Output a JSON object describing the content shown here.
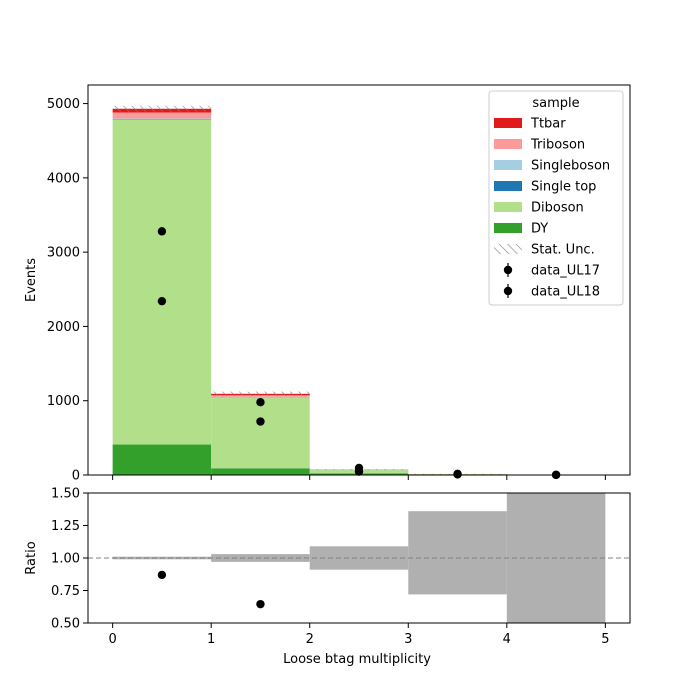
{
  "chart_data": [
    {
      "type": "bar",
      "stacked": true,
      "xlabel": "",
      "ylabel": "Events",
      "ylim": [
        0,
        5250
      ],
      "xlim": [
        -0.25,
        5.25
      ],
      "bin_edges": [
        0,
        1,
        2,
        3,
        4,
        5
      ],
      "x_ticks": [
        "0",
        "1",
        "2",
        "3",
        "4",
        "5"
      ],
      "y_ticks": [
        "0",
        "1000",
        "2000",
        "3000",
        "4000",
        "5000"
      ],
      "legend_title": "sample",
      "legend_position": "top-right",
      "series": [
        {
          "name": "DY",
          "color": "#33a02c",
          "values": [
            410,
            90,
            20,
            3,
            0
          ]
        },
        {
          "name": "Diboson",
          "color": "#b2df8a",
          "values": [
            4370,
            955,
            45,
            8,
            1
          ]
        },
        {
          "name": "Single top",
          "color": "#1f78b4",
          "values": [
            5,
            3,
            1,
            0,
            0
          ]
        },
        {
          "name": "Singleboson",
          "color": "#a6cee3",
          "values": [
            15,
            5,
            1,
            0,
            0
          ]
        },
        {
          "name": "Triboson",
          "color": "#fb9a99",
          "values": [
            80,
            20,
            2,
            0,
            0
          ]
        },
        {
          "name": "Ttbar",
          "color": "#e31a1c",
          "values": [
            50,
            20,
            3,
            1,
            0
          ]
        }
      ],
      "stat_unc": {
        "name": "Stat. Unc.",
        "values": [
          40,
          30,
          6,
          4,
          2
        ]
      },
      "data_series": [
        {
          "name": "data_UL17",
          "x": [
            0.5,
            1.5,
            2.5,
            3.5,
            4.5
          ],
          "y": [
            3280,
            980,
            95,
            15,
            3
          ]
        },
        {
          "name": "data_UL18",
          "x": [
            0.5,
            1.5,
            2.5,
            3.5,
            4.5
          ],
          "y": [
            2340,
            720,
            45,
            8,
            1
          ]
        }
      ]
    },
    {
      "type": "scatter",
      "xlabel": "Loose btag multiplicity",
      "ylabel": "Ratio",
      "ylim": [
        0.5,
        1.5
      ],
      "xlim": [
        -0.25,
        5.25
      ],
      "x_ticks": [
        "0",
        "1",
        "2",
        "3",
        "4",
        "5"
      ],
      "y_ticks": [
        "0.50",
        "0.75",
        "1.00",
        "1.25",
        "1.50"
      ],
      "reference_line": 1.0,
      "unc_band": {
        "low": [
          0.99,
          0.97,
          0.91,
          0.72,
          0.5
        ],
        "high": [
          1.01,
          1.03,
          1.09,
          1.36,
          1.5
        ]
      },
      "points": {
        "x": [
          0.5,
          1.5
        ],
        "y": [
          0.87,
          0.645
        ]
      }
    }
  ],
  "colors": {
    "data_marker": "#000000",
    "unc_band": "#b0b0b0",
    "ref_line": "#808080"
  }
}
